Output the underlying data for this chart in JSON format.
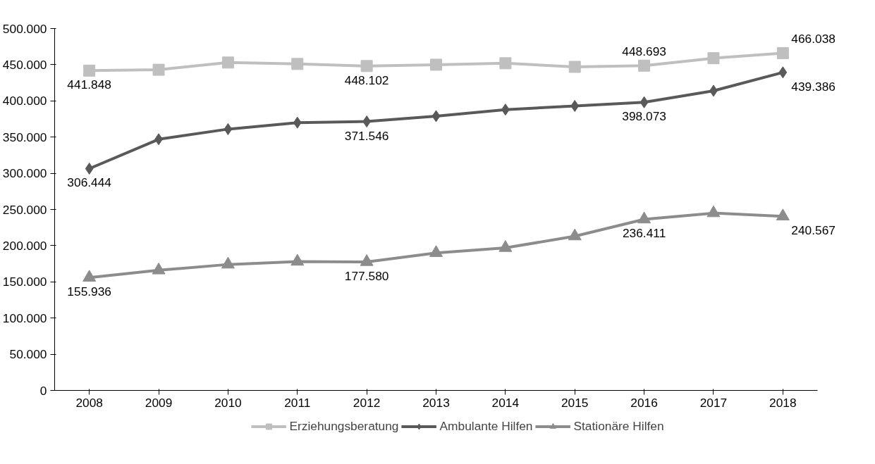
{
  "chart_data": {
    "type": "line",
    "categories": [
      "2008",
      "2009",
      "2010",
      "2011",
      "2012",
      "2013",
      "2014",
      "2015",
      "2016",
      "2017",
      "2018"
    ],
    "series": [
      {
        "name": "Erziehungsberatung",
        "color": "#bfbfbf",
        "marker": "square",
        "values": [
          441848,
          443000,
          453000,
          451000,
          448102,
          450000,
          452000,
          447000,
          448693,
          459000,
          466038
        ],
        "value_labels": [
          "441.848",
          null,
          null,
          null,
          "448.102",
          null,
          null,
          null,
          "448.693",
          null,
          "466.038"
        ]
      },
      {
        "name": "Ambulante Hilfen",
        "color": "#595959",
        "marker": "diamond",
        "values": [
          306444,
          347000,
          361000,
          370000,
          371546,
          379000,
          388000,
          393000,
          398073,
          414000,
          439386
        ],
        "value_labels": [
          "306.444",
          null,
          null,
          null,
          "371.546",
          null,
          null,
          null,
          "398.073",
          null,
          "439.386"
        ]
      },
      {
        "name": "Stationäre Hilfen",
        "color": "#8c8c8c",
        "marker": "triangle",
        "values": [
          155936,
          166000,
          174000,
          178000,
          177580,
          190000,
          197000,
          213000,
          236411,
          245000,
          240567
        ],
        "value_labels": [
          "155.936",
          null,
          null,
          null,
          "177.580",
          null,
          null,
          null,
          "236.411",
          null,
          "240.567"
        ]
      }
    ],
    "ylim": [
      0,
      500000
    ],
    "yticks": [
      {
        "value": 0,
        "label": "0"
      },
      {
        "value": 50000,
        "label": "50.000"
      },
      {
        "value": 100000,
        "label": "100.000"
      },
      {
        "value": 150000,
        "label": "150.000"
      },
      {
        "value": 200000,
        "label": "200.000"
      },
      {
        "value": 250000,
        "label": "250.000"
      },
      {
        "value": 300000,
        "label": "300.000"
      },
      {
        "value": 350000,
        "label": "350.000"
      },
      {
        "value": 400000,
        "label": "400.000"
      },
      {
        "value": 450000,
        "label": "450.000"
      },
      {
        "value": 500000,
        "label": "500.000"
      }
    ],
    "grid": false,
    "legend": "bottom",
    "line_style": "solid"
  }
}
